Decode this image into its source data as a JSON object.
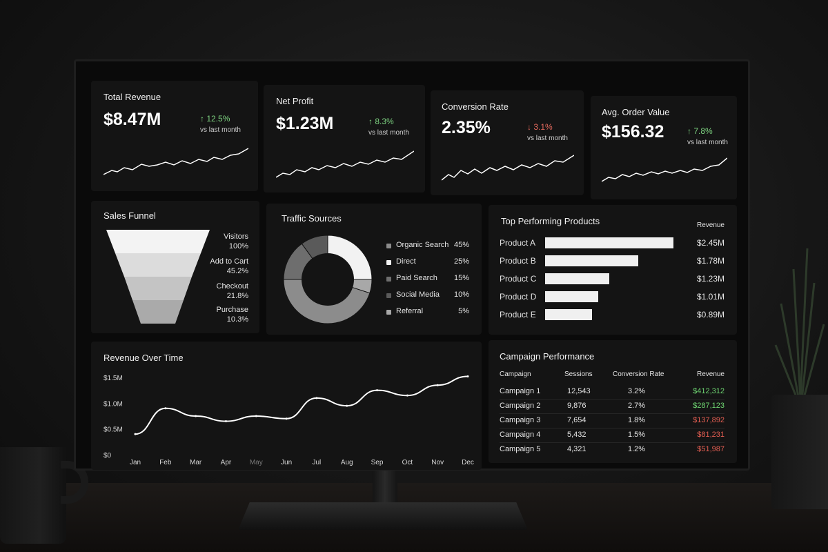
{
  "kpis": [
    {
      "title": "Total Revenue",
      "value": "$8.47M",
      "change": "↑ 12.5%",
      "direction": "up",
      "sub": "vs last month"
    },
    {
      "title": "Net Profit",
      "value": "$1.23M",
      "change": "↑ 8.3%",
      "direction": "up",
      "sub": "vs last month"
    },
    {
      "title": "Conversion Rate",
      "value": "2.35%",
      "change": "↓ 3.1%",
      "direction": "down",
      "sub": "vs last month"
    },
    {
      "title": "Avg. Order Value",
      "value": "$156.32",
      "change": "↑ 7.8%",
      "direction": "up",
      "sub": "vs last month"
    }
  ],
  "funnel": {
    "title": "Sales Funnel",
    "stages": [
      {
        "label": "Visitors",
        "value": "100%"
      },
      {
        "label": "Add to Cart",
        "value": "45.2%"
      },
      {
        "label": "Checkout",
        "value": "21.8%"
      },
      {
        "label": "Purchase",
        "value": "10.3%"
      }
    ]
  },
  "traffic": {
    "title": "Traffic Sources",
    "sources": [
      {
        "label": "Organic Search",
        "value": "45%",
        "share": 45,
        "color": "#8c8c8c"
      },
      {
        "label": "Direct",
        "value": "25%",
        "share": 25,
        "color": "#f2f2f2"
      },
      {
        "label": "Paid Search",
        "value": "15%",
        "share": 15,
        "color": "#6e6e6e"
      },
      {
        "label": "Social Media",
        "value": "10%",
        "share": 10,
        "color": "#5a5a5a"
      },
      {
        "label": "Referral",
        "value": "5%",
        "share": 5,
        "color": "#a8a8a8"
      }
    ]
  },
  "products": {
    "title": "Top Performing Products",
    "column_header": "Revenue",
    "items": [
      {
        "name": "Product A",
        "value": "$2.45M",
        "amount": 2.45
      },
      {
        "name": "Product B",
        "value": "$1.78M",
        "amount": 1.78
      },
      {
        "name": "Product C",
        "value": "$1.23M",
        "amount": 1.23
      },
      {
        "name": "Product D",
        "value": "$1.01M",
        "amount": 1.01
      },
      {
        "name": "Product E",
        "value": "$0.89M",
        "amount": 0.89
      }
    ]
  },
  "revenue_chart": {
    "title": "Revenue Over Time",
    "y_ticks": [
      "$1.5M",
      "$1.0M",
      "$0.5M",
      "$0"
    ],
    "months": [
      "Jan",
      "Feb",
      "Mar",
      "Apr",
      "May",
      "Jun",
      "Jul",
      "Aug",
      "Sep",
      "Oct",
      "Nov",
      "Dec"
    ]
  },
  "chart_data": {
    "type": "line",
    "x": [
      "Jan",
      "Feb",
      "Mar",
      "Apr",
      "May",
      "Jun",
      "Jul",
      "Aug",
      "Sep",
      "Oct",
      "Nov",
      "Dec"
    ],
    "series": [
      {
        "values": [
          0.4,
          0.9,
          0.75,
          0.65,
          0.75,
          0.7,
          1.1,
          0.95,
          1.25,
          1.15,
          1.35,
          1.52
        ]
      }
    ],
    "ylim": [
      0,
      1.5
    ],
    "y_unit": "$M"
  },
  "campaigns": {
    "title": "Campaign Performance",
    "headers": [
      "Campaign",
      "Sessions",
      "Conversion Rate",
      "Revenue"
    ],
    "rows": [
      {
        "name": "Campaign 1",
        "sessions": "12,543",
        "rate": "3.2%",
        "revenue": "$412,312",
        "trend": "positive"
      },
      {
        "name": "Campaign 2",
        "sessions": "9,876",
        "rate": "2.7%",
        "revenue": "$287,123",
        "trend": "positive"
      },
      {
        "name": "Campaign 3",
        "sessions": "7,654",
        "rate": "1.8%",
        "revenue": "$137,892",
        "trend": "negative"
      },
      {
        "name": "Campaign 4",
        "sessions": "5,432",
        "rate": "1.5%",
        "revenue": "$81,231",
        "trend": "negative"
      },
      {
        "name": "Campaign 5",
        "sessions": "4,321",
        "rate": "1.2%",
        "revenue": "$51,987",
        "trend": "negative"
      }
    ]
  }
}
